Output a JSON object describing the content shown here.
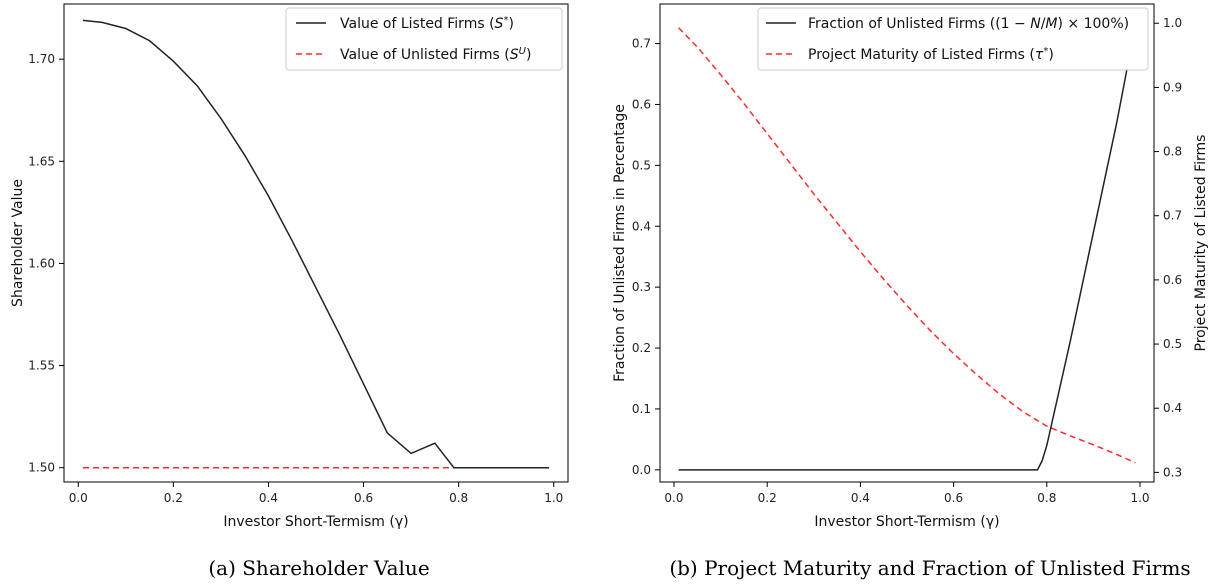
{
  "colors": {
    "listed": "#222222",
    "unlisted": "#ff2a2a"
  },
  "chart_data": [
    {
      "type": "line",
      "caption": "(a) Shareholder Value",
      "xlabel": "Investor Short-Termism (γ)",
      "ylabel": "Shareholder Value",
      "xlim": [
        -0.03,
        1.03
      ],
      "ylim": [
        1.493,
        1.727
      ],
      "xticks": [
        "0.0",
        "0.2",
        "0.4",
        "0.6",
        "0.8",
        "1.0"
      ],
      "yticks": [
        "1.50",
        "1.55",
        "1.60",
        "1.65",
        "1.70"
      ],
      "legend_position": "top-right",
      "series": [
        {
          "name": "Value of Listed Firms (S*)",
          "style": "solid",
          "color": "#222222",
          "x": [
            0.01,
            0.05,
            0.1,
            0.15,
            0.2,
            0.25,
            0.3,
            0.35,
            0.4,
            0.45,
            0.5,
            0.55,
            0.6,
            0.65,
            0.7,
            0.75,
            0.78,
            0.79,
            0.8,
            0.85,
            0.9,
            0.95,
            0.99
          ],
          "y": [
            1.719,
            1.718,
            1.715,
            1.709,
            1.699,
            1.687,
            1.671,
            1.653,
            1.633,
            1.611,
            1.588,
            1.565,
            1.541,
            1.517,
            1.526,
            1.512,
            1.503,
            1.5,
            1.5,
            1.5,
            1.5,
            1.5,
            1.5
          ]
        },
        {
          "name": "Value of Unlisted Firms (S^U)",
          "style": "dashed",
          "color": "#ff2a2a",
          "x": [
            0.01,
            0.99
          ],
          "y": [
            1.5,
            1.5
          ]
        }
      ]
    },
    {
      "type": "line",
      "caption": "(b) Project Maturity and Fraction of Unlisted Firms",
      "xlabel": "Investor Short-Termism (γ)",
      "ylabel_left": "Fraction of Unlisted Firms in Percentage",
      "ylabel_right": "Project Maturity of Listed Firms",
      "xlim": [
        -0.03,
        1.03
      ],
      "ylim_left": [
        -0.02,
        0.765
      ],
      "ylim_right": [
        0.285,
        1.03
      ],
      "xticks": [
        "0.0",
        "0.2",
        "0.4",
        "0.6",
        "0.8",
        "1.0"
      ],
      "yticks_left": [
        "0.0",
        "0.1",
        "0.2",
        "0.3",
        "0.4",
        "0.5",
        "0.6",
        "0.7"
      ],
      "yticks_right": [
        "0.3",
        "0.4",
        "0.5",
        "0.6",
        "0.7",
        "0.8",
        "0.9",
        "1.0"
      ],
      "legend_position": "top-right",
      "series": [
        {
          "name": "Fraction of Unlisted Firms ((1 − N/M) × 100%)",
          "axis": "left",
          "style": "solid",
          "color": "#222222",
          "x": [
            0.01,
            0.2,
            0.4,
            0.6,
            0.78,
            0.79,
            0.8,
            0.85,
            0.9,
            0.95,
            0.99
          ],
          "y": [
            0.0,
            0.0,
            0.0,
            0.0,
            0.0,
            0.015,
            0.04,
            0.21,
            0.39,
            0.57,
            0.73
          ]
        },
        {
          "name": "Project Maturity of Listed Firms (τ*)",
          "axis": "right",
          "style": "dashed",
          "color": "#ff2a2a",
          "x": [
            0.01,
            0.05,
            0.1,
            0.15,
            0.2,
            0.25,
            0.3,
            0.35,
            0.4,
            0.45,
            0.5,
            0.55,
            0.6,
            0.65,
            0.7,
            0.75,
            0.8,
            0.85,
            0.9,
            0.95,
            0.99
          ],
          "y": [
            0.993,
            0.963,
            0.92,
            0.875,
            0.828,
            0.781,
            0.734,
            0.689,
            0.644,
            0.601,
            0.56,
            0.521,
            0.485,
            0.452,
            0.421,
            0.394,
            0.372,
            0.357,
            0.343,
            0.328,
            0.315
          ]
        }
      ]
    }
  ]
}
